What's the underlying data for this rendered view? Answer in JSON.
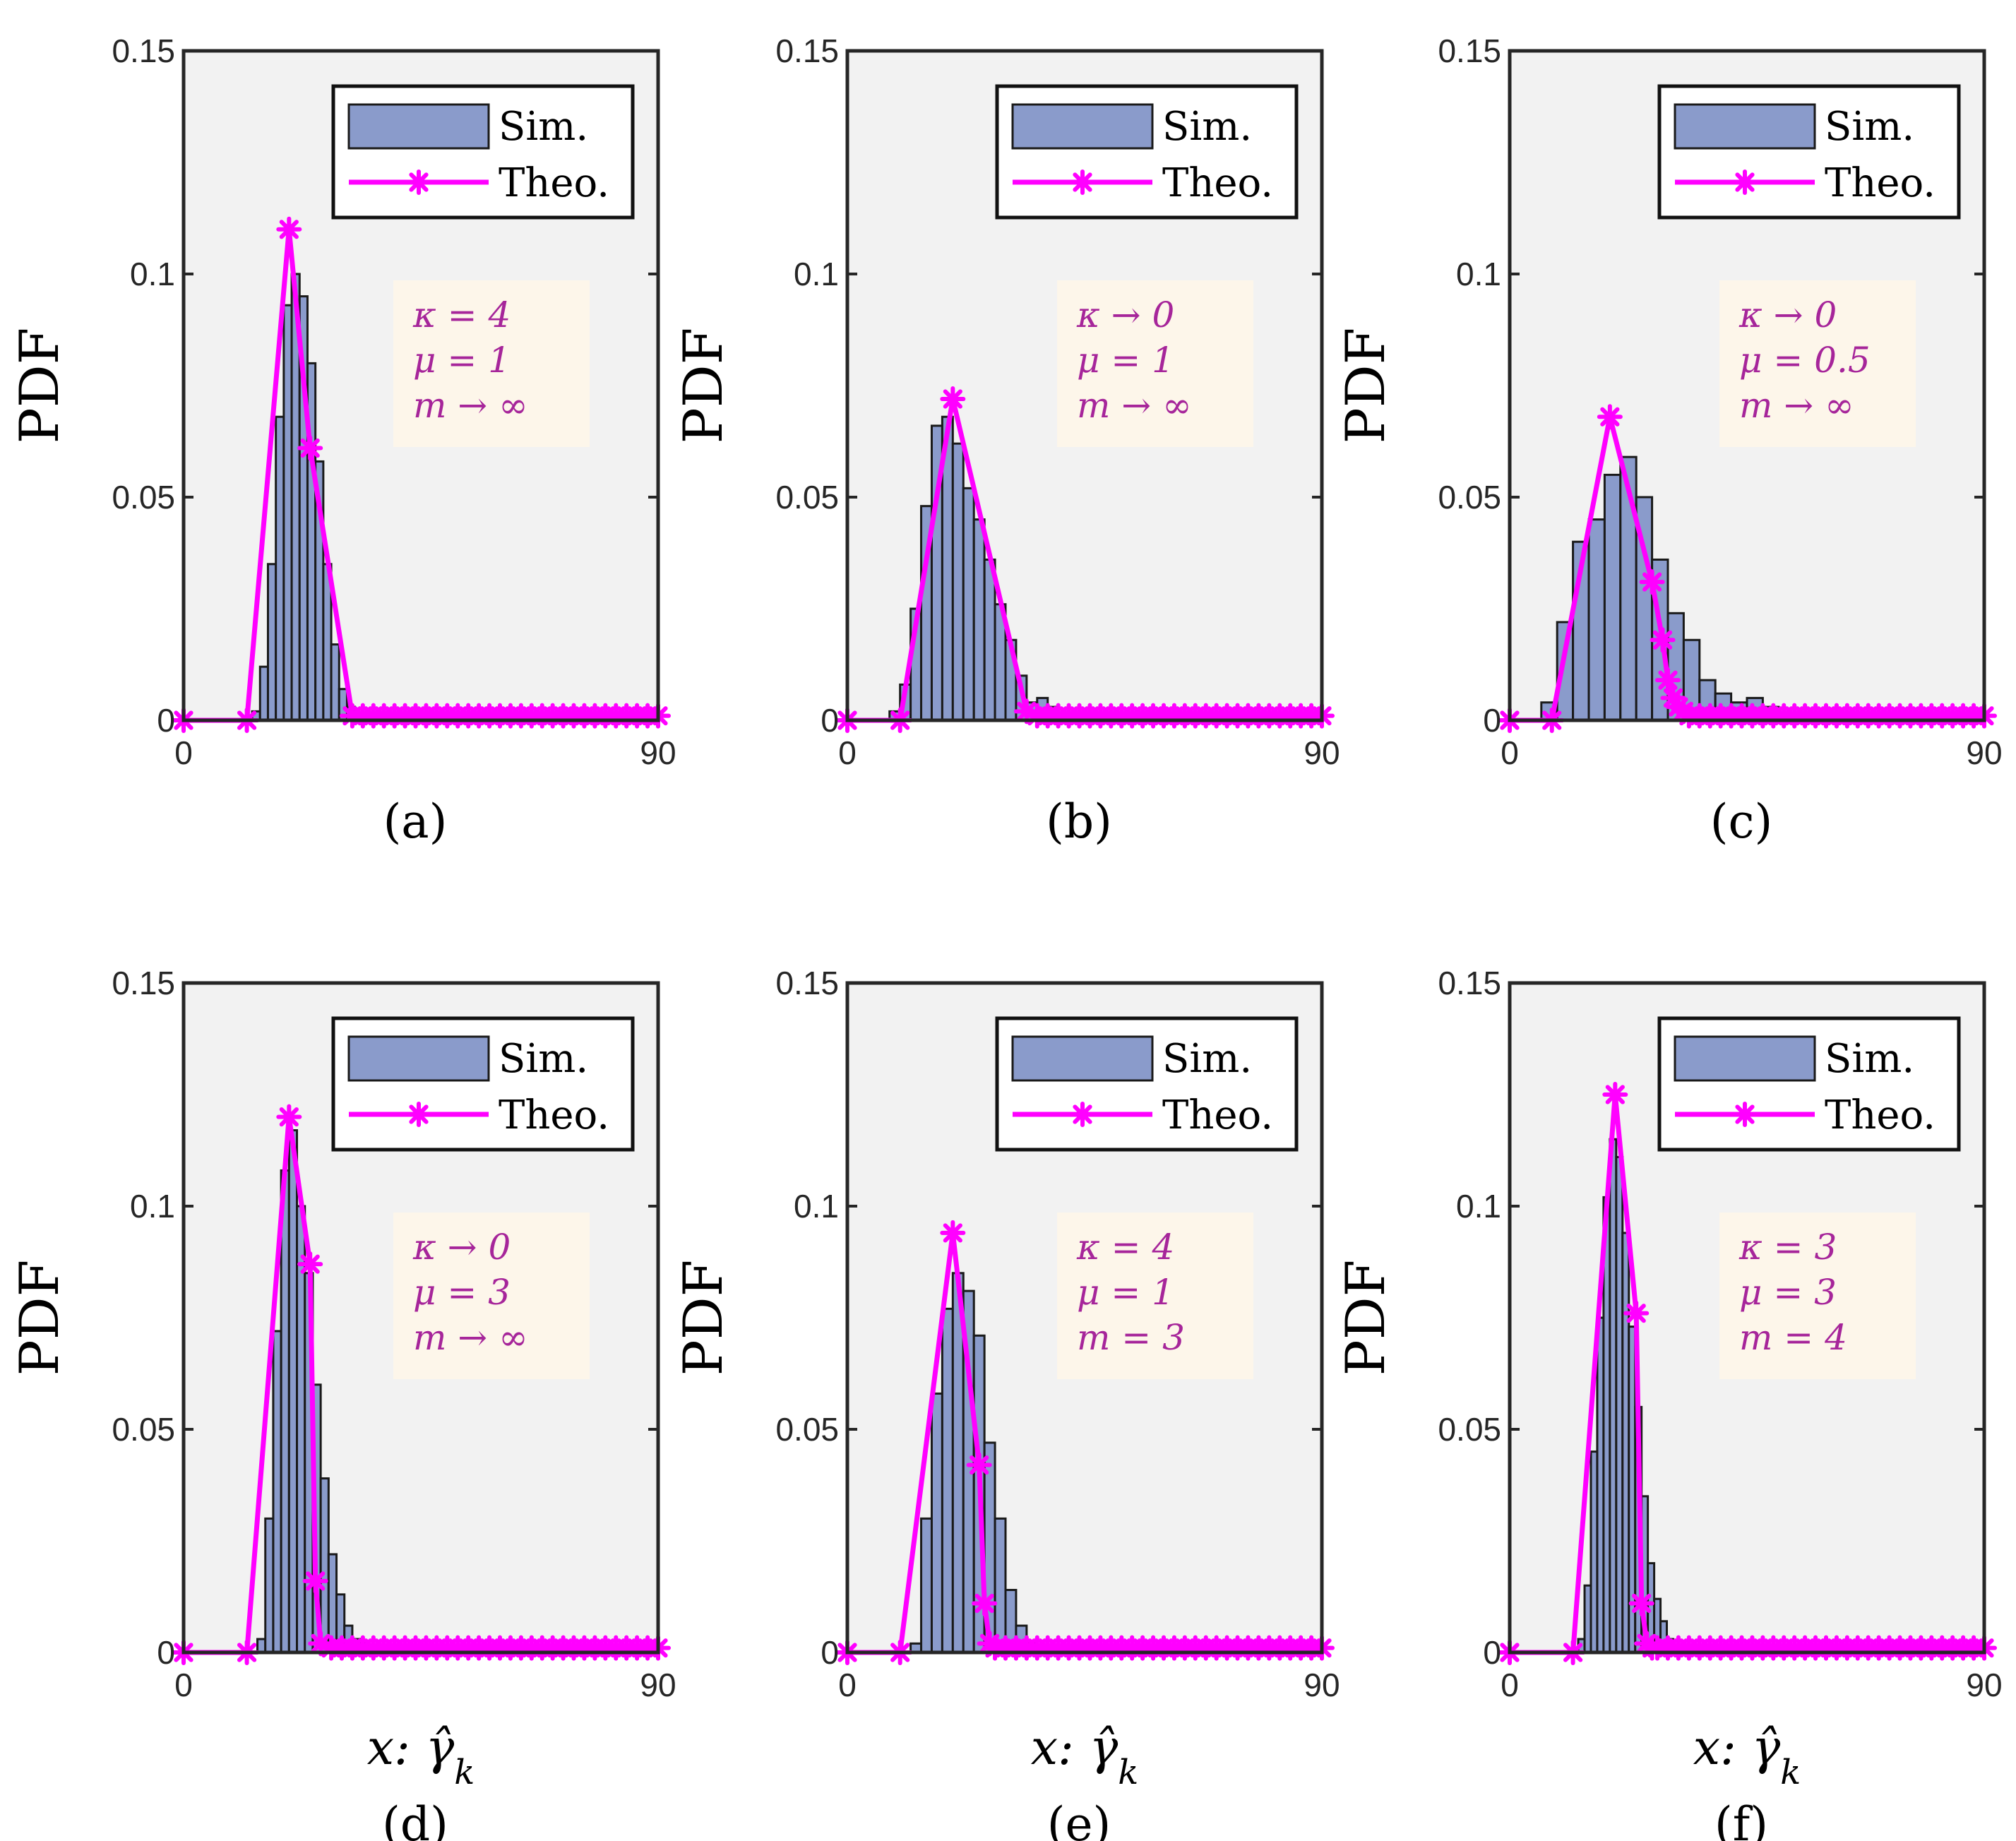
{
  "chart_data": [
    {
      "type": "bar+line",
      "panel": "(a)",
      "ylabel": "PDF",
      "xlabel": "",
      "xlim": [
        0,
        90
      ],
      "ylim": [
        0,
        0.15
      ],
      "xticks": [
        "0",
        "90"
      ],
      "yticks": [
        "0",
        "0.05",
        "0.1",
        "0.15"
      ],
      "legend": [
        "Sim.",
        "Theo."
      ],
      "params": [
        "κ = 4",
        "μ = 1",
        "m → ∞"
      ],
      "bin_width": 1.5,
      "sim_bins_x": [
        13,
        14.5,
        16,
        17.5,
        19,
        20.5,
        22,
        23.5,
        25,
        26.5,
        28,
        29.5,
        31,
        32.5
      ],
      "sim_values": [
        0.002,
        0.012,
        0.035,
        0.068,
        0.093,
        0.1,
        0.095,
        0.08,
        0.058,
        0.035,
        0.017,
        0.007,
        0.003,
        0.001
      ],
      "theo_x": [
        0,
        12,
        20,
        24,
        32,
        34,
        36,
        38,
        40,
        42,
        44,
        46,
        48,
        50,
        52,
        54,
        56,
        58,
        60,
        62,
        64,
        66,
        68,
        70,
        72,
        74,
        76,
        78,
        80,
        82,
        84,
        86,
        88,
        90
      ],
      "theo_y": [
        0,
        0,
        0.11,
        0.061,
        0.001,
        0.001,
        0.001,
        0.001,
        0.001,
        0.001,
        0.001,
        0.001,
        0.001,
        0.001,
        0.001,
        0.001,
        0.001,
        0.001,
        0.001,
        0.001,
        0.001,
        0.001,
        0.001,
        0.001,
        0.001,
        0.001,
        0.001,
        0.001,
        0.001,
        0.001,
        0.001,
        0.001,
        0.001,
        0.001
      ]
    },
    {
      "type": "bar+line",
      "panel": "(b)",
      "ylabel": "PDF",
      "xlabel": "",
      "xlim": [
        0,
        90
      ],
      "ylim": [
        0,
        0.15
      ],
      "xticks": [
        "0",
        "90"
      ],
      "yticks": [
        "0",
        "0.05",
        "0.1",
        "0.15"
      ],
      "legend": [
        "Sim.",
        "Theo."
      ],
      "params": [
        "κ → 0",
        "μ = 1",
        "m → ∞"
      ],
      "bin_width": 2,
      "sim_bins_x": [
        8,
        10,
        12,
        14,
        16,
        18,
        20,
        22,
        24,
        26,
        28,
        30,
        32,
        34,
        36,
        38
      ],
      "sim_values": [
        0.002,
        0.008,
        0.025,
        0.048,
        0.066,
        0.068,
        0.062,
        0.052,
        0.045,
        0.036,
        0.026,
        0.018,
        0.01,
        0.004,
        0.005,
        0.003
      ],
      "theo_x": [
        0,
        10,
        20,
        34,
        36,
        38,
        40,
        42,
        44,
        46,
        48,
        50,
        52,
        54,
        56,
        58,
        60,
        62,
        64,
        66,
        68,
        70,
        72,
        74,
        76,
        78,
        80,
        82,
        84,
        86,
        88,
        90
      ],
      "theo_y": [
        0,
        0,
        0.072,
        0.002,
        0.001,
        0.001,
        0.001,
        0.001,
        0.001,
        0.001,
        0.001,
        0.001,
        0.001,
        0.001,
        0.001,
        0.001,
        0.001,
        0.001,
        0.001,
        0.001,
        0.001,
        0.001,
        0.001,
        0.001,
        0.001,
        0.001,
        0.001,
        0.001,
        0.001,
        0.001,
        0.001,
        0.001
      ]
    },
    {
      "type": "bar+line",
      "panel": "(c)",
      "ylabel": "PDF",
      "xlabel": "",
      "xlim": [
        0,
        90
      ],
      "ylim": [
        0,
        0.15
      ],
      "xticks": [
        "0",
        "90"
      ],
      "yticks": [
        "0",
        "0.05",
        "0.1",
        "0.15"
      ],
      "legend": [
        "Sim.",
        "Theo."
      ],
      "params": [
        "κ → 0",
        "μ = 0.5",
        "m → ∞"
      ],
      "bin_width": 3,
      "sim_bins_x": [
        6,
        9,
        12,
        15,
        18,
        21,
        24,
        27,
        30,
        33,
        36,
        39,
        42,
        45,
        48,
        51
      ],
      "sim_values": [
        0.004,
        0.022,
        0.04,
        0.045,
        0.055,
        0.059,
        0.05,
        0.036,
        0.024,
        0.018,
        0.009,
        0.006,
        0.004,
        0.005,
        0.003,
        0.001
      ],
      "theo_x": [
        0,
        8,
        19,
        27,
        29,
        30,
        31,
        32,
        33,
        34,
        36,
        38,
        40,
        42,
        44,
        46,
        48,
        50,
        52,
        54,
        56,
        58,
        60,
        62,
        64,
        66,
        68,
        70,
        72,
        74,
        76,
        78,
        80,
        82,
        84,
        86,
        88,
        90
      ],
      "theo_y": [
        0,
        0,
        0.068,
        0.031,
        0.018,
        0.009,
        0.005,
        0.003,
        0.002,
        0.001,
        0.001,
        0.001,
        0.001,
        0.001,
        0.001,
        0.001,
        0.001,
        0.001,
        0.001,
        0.001,
        0.001,
        0.001,
        0.001,
        0.001,
        0.001,
        0.001,
        0.001,
        0.001,
        0.001,
        0.001,
        0.001,
        0.001,
        0.001,
        0.001,
        0.001,
        0.001,
        0.001,
        0.001
      ]
    },
    {
      "type": "bar+line",
      "panel": "(d)",
      "ylabel": "PDF",
      "xlabel": "x: γ̂k",
      "xlim": [
        0,
        90
      ],
      "ylim": [
        0,
        0.15
      ],
      "xticks": [
        "0",
        "90"
      ],
      "yticks": [
        "0",
        "0.05",
        "0.1",
        "0.15"
      ],
      "legend": [
        "Sim.",
        "Theo."
      ],
      "params": [
        "κ → 0",
        "μ = 3",
        "m → ∞"
      ],
      "bin_width": 1.5,
      "sim_bins_x": [
        14,
        15.5,
        17,
        18.5,
        20,
        21.5,
        23,
        24.5,
        26,
        27.5,
        29,
        30.5,
        32,
        33.5,
        35
      ],
      "sim_values": [
        0.003,
        0.03,
        0.072,
        0.108,
        0.117,
        0.1,
        0.085,
        0.06,
        0.039,
        0.022,
        0.013,
        0.006,
        0.003,
        0.002,
        0.001
      ],
      "theo_x": [
        0,
        12,
        20,
        24,
        25,
        26,
        28,
        30,
        32,
        34,
        36,
        38,
        40,
        42,
        44,
        46,
        48,
        50,
        52,
        54,
        56,
        58,
        60,
        62,
        64,
        66,
        68,
        70,
        72,
        74,
        76,
        78,
        80,
        82,
        84,
        86,
        88,
        90
      ],
      "theo_y": [
        0,
        0,
        0.12,
        0.087,
        0.016,
        0.002,
        0.001,
        0.001,
        0.001,
        0.001,
        0.001,
        0.001,
        0.001,
        0.001,
        0.001,
        0.001,
        0.001,
        0.001,
        0.001,
        0.001,
        0.001,
        0.001,
        0.001,
        0.001,
        0.001,
        0.001,
        0.001,
        0.001,
        0.001,
        0.001,
        0.001,
        0.001,
        0.001,
        0.001,
        0.001,
        0.001,
        0.001,
        0.001
      ]
    },
    {
      "type": "bar+line",
      "panel": "(e)",
      "ylabel": "PDF",
      "xlabel": "x: γ̂k",
      "xlim": [
        0,
        90
      ],
      "ylim": [
        0,
        0.15
      ],
      "xticks": [
        "0",
        "90"
      ],
      "yticks": [
        "0",
        "0.05",
        "0.1",
        "0.15"
      ],
      "legend": [
        "Sim.",
        "Theo."
      ],
      "params": [
        "κ = 4",
        "μ = 1",
        "m = 3"
      ],
      "bin_width": 2,
      "sim_bins_x": [
        12,
        14,
        16,
        18,
        20,
        22,
        24,
        26,
        28,
        30,
        32,
        34
      ],
      "sim_values": [
        0.002,
        0.03,
        0.058,
        0.077,
        0.085,
        0.081,
        0.071,
        0.047,
        0.03,
        0.014,
        0.006,
        0.002
      ],
      "theo_x": [
        0,
        10,
        20,
        25,
        26,
        27,
        28,
        30,
        32,
        34,
        36,
        38,
        40,
        42,
        44,
        46,
        48,
        50,
        52,
        54,
        56,
        58,
        60,
        62,
        64,
        66,
        68,
        70,
        72,
        74,
        76,
        78,
        80,
        82,
        84,
        86,
        88,
        90
      ],
      "theo_y": [
        0,
        0,
        0.094,
        0.042,
        0.011,
        0.002,
        0.001,
        0.001,
        0.001,
        0.001,
        0.001,
        0.001,
        0.001,
        0.001,
        0.001,
        0.001,
        0.001,
        0.001,
        0.001,
        0.001,
        0.001,
        0.001,
        0.001,
        0.001,
        0.001,
        0.001,
        0.001,
        0.001,
        0.001,
        0.001,
        0.001,
        0.001,
        0.001,
        0.001,
        0.001,
        0.001,
        0.001,
        0.001
      ]
    },
    {
      "type": "bar+line",
      "panel": "(f)",
      "ylabel": "PDF",
      "xlabel": "x: γ̂k",
      "xlim": [
        0,
        90
      ],
      "ylim": [
        0,
        0.15
      ],
      "xticks": [
        "0",
        "90"
      ],
      "yticks": [
        "0",
        "0.05",
        "0.1",
        "0.15"
      ],
      "legend": [
        "Sim.",
        "Theo."
      ],
      "params": [
        "κ = 3",
        "μ = 3",
        "m = 4"
      ],
      "bin_width": 1.2,
      "sim_bins_x": [
        13,
        14.2,
        15.4,
        16.6,
        17.8,
        19,
        20.2,
        21.4,
        22.6,
        23.8,
        25,
        26.2,
        27.4,
        28.6,
        29.8,
        31
      ],
      "sim_values": [
        0.003,
        0.015,
        0.045,
        0.075,
        0.102,
        0.115,
        0.111,
        0.094,
        0.073,
        0.055,
        0.035,
        0.02,
        0.012,
        0.007,
        0.003,
        0.001
      ],
      "theo_x": [
        0,
        12,
        20,
        24,
        25,
        26,
        27,
        28,
        30,
        32,
        34,
        36,
        38,
        40,
        42,
        44,
        46,
        48,
        50,
        52,
        54,
        56,
        58,
        60,
        62,
        64,
        66,
        68,
        70,
        72,
        74,
        76,
        78,
        80,
        82,
        84,
        86,
        88,
        90
      ],
      "theo_y": [
        0,
        0,
        0.125,
        0.076,
        0.011,
        0.002,
        0.001,
        0.001,
        0.001,
        0.001,
        0.001,
        0.001,
        0.001,
        0.001,
        0.001,
        0.001,
        0.001,
        0.001,
        0.001,
        0.001,
        0.001,
        0.001,
        0.001,
        0.001,
        0.001,
        0.001,
        0.001,
        0.001,
        0.001,
        0.001,
        0.001,
        0.001,
        0.001,
        0.001,
        0.001,
        0.001,
        0.001,
        0.001,
        0.001
      ]
    }
  ],
  "colors": {
    "plot_bg": "#f2f2f2",
    "bar_fill": "#8a9bcb",
    "bar_edge": "#1a1a1a",
    "theo_line": "#ff00ff",
    "param_box_bg": "#fdf6ea",
    "param_text": "#a6259a",
    "axis": "#262626"
  }
}
